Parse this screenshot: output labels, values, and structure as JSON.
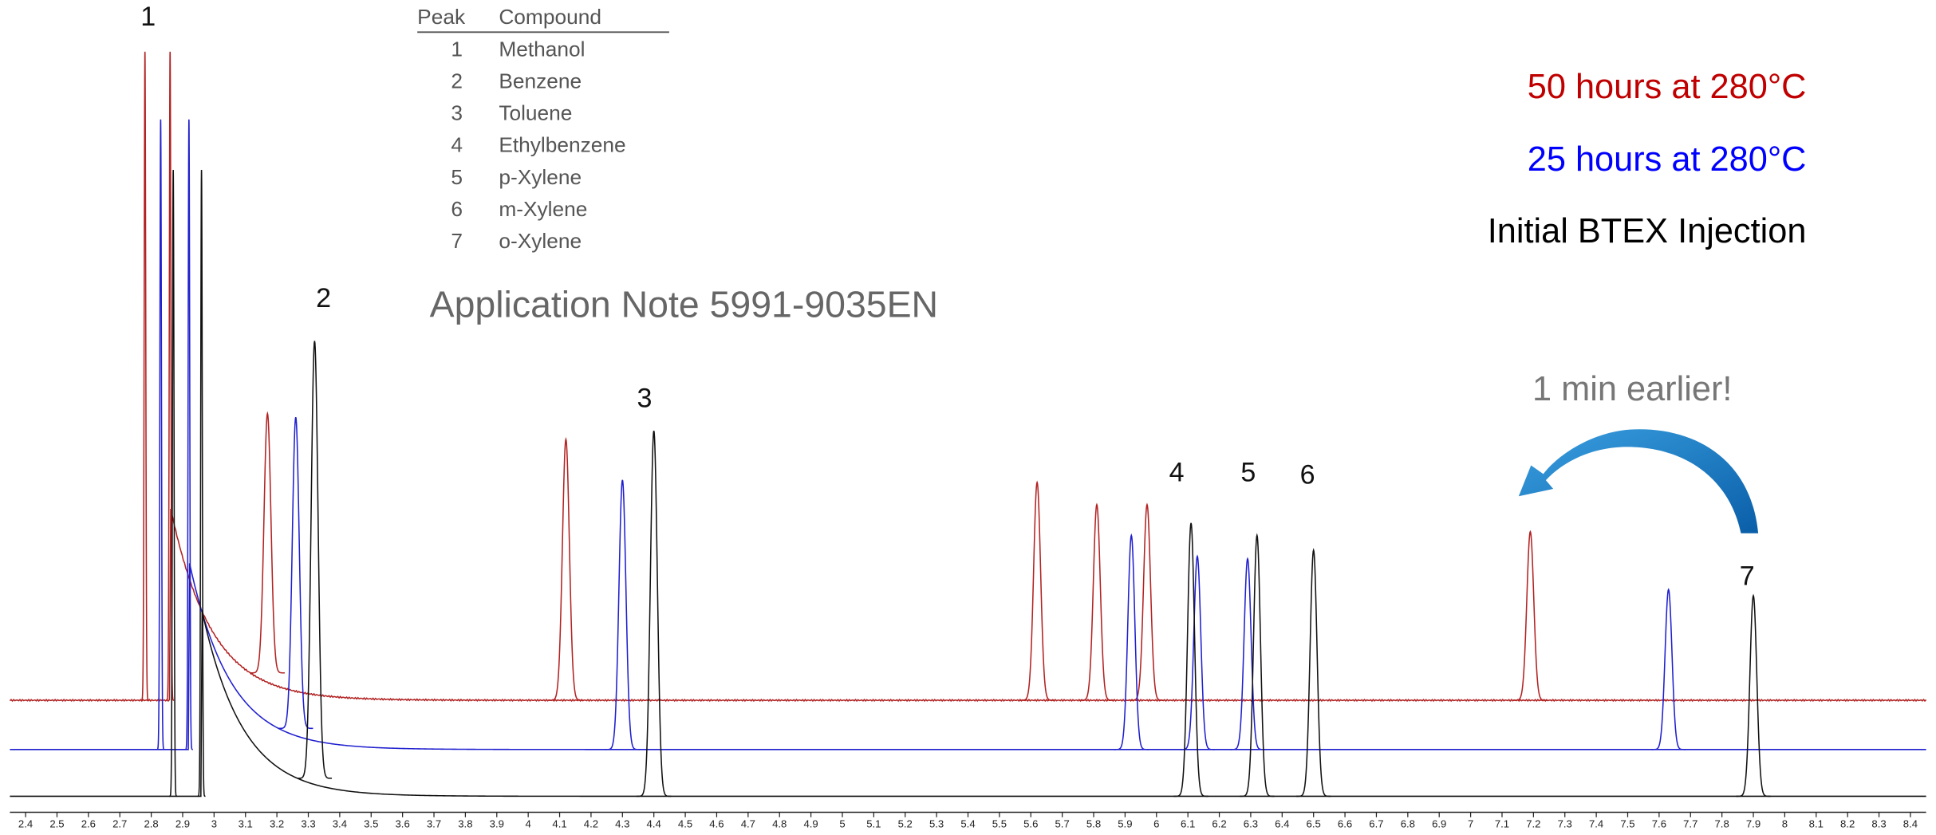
{
  "chart_data": {
    "type": "chromatogram",
    "note": "Application Note 5991-9035EN",
    "annotation": "1 min earlier!",
    "peak_labels": [
      "1",
      "2",
      "3",
      "4",
      "5",
      "6",
      "7"
    ],
    "table": {
      "header": [
        "Peak",
        "Compound"
      ],
      "rows": [
        [
          "1",
          "Methanol"
        ],
        [
          "2",
          "Benzene"
        ],
        [
          "3",
          "Toluene"
        ],
        [
          "4",
          "Ethylbenzene"
        ],
        [
          "5",
          "p-Xylene"
        ],
        [
          "6",
          "m-Xylene"
        ],
        [
          "7",
          "o-Xylene"
        ]
      ]
    },
    "xlim": [
      2.35,
      8.45
    ],
    "ylim": [
      0,
      660
    ],
    "xticks": [
      2.4,
      2.5,
      2.6,
      2.7,
      2.8,
      2.9,
      3,
      3.1,
      3.2,
      3.3,
      3.4,
      3.5,
      3.6,
      3.7,
      3.8,
      3.9,
      4,
      4.1,
      4.2,
      4.3,
      4.4,
      4.5,
      4.6,
      4.7,
      4.8,
      4.9,
      5,
      5.1,
      5.2,
      5.3,
      5.4,
      5.5,
      5.6,
      5.7,
      5.8,
      5.9,
      6,
      6.1,
      6.2,
      6.3,
      6.4,
      6.5,
      6.6,
      6.7,
      6.8,
      6.9,
      7,
      7.1,
      7.2,
      7.3,
      7.4,
      7.5,
      7.6,
      7.7,
      7.8,
      7.9,
      8,
      8.1,
      8.2,
      8.3,
      8.4
    ],
    "series": [
      {
        "name": "50 hours at 280°C",
        "color": "#b22222",
        "label_color": "#c00000",
        "baseline": 91,
        "x": [
          2.78,
          2.86,
          3.17,
          4.12,
          5.62,
          5.81,
          5.97,
          7.19
        ],
        "values": [
          618,
          618,
          324,
          303,
          268,
          250,
          250,
          228
        ]
      },
      {
        "name": "25 hours at 280°C",
        "color": "#1f1fcf",
        "label_color": "#0000ff",
        "baseline": 51,
        "x": [
          2.83,
          2.92,
          3.26,
          4.3,
          5.92,
          6.13,
          6.29,
          7.63
        ],
        "values": [
          563,
          563,
          321,
          270,
          225,
          208,
          206,
          181
        ]
      },
      {
        "name": "Initial BTEX Injection",
        "color": "#111111",
        "label_color": "#000000",
        "baseline": 13,
        "x": [
          2.87,
          2.96,
          3.32,
          4.4,
          6.11,
          6.32,
          6.5,
          7.9
        ],
        "values": [
          522,
          522,
          383,
          310,
          235,
          225,
          213,
          176
        ]
      }
    ]
  }
}
